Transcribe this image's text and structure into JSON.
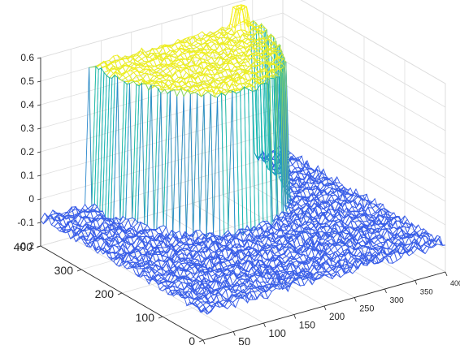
{
  "chart_data": {
    "type": "surface",
    "title": "",
    "xlabel": "",
    "ylabel": "",
    "zlabel": "",
    "x_axis": {
      "ticks": [
        0,
        50,
        100,
        150,
        200,
        250,
        300,
        350,
        400
      ],
      "tick_labels": [
        "0",
        "50",
        "100",
        "150",
        "200",
        "250",
        "300",
        "350",
        "400"
      ],
      "range": [
        0,
        400
      ]
    },
    "y_axis": {
      "ticks": [
        0,
        100,
        200,
        300,
        400
      ],
      "tick_labels": [
        "0",
        "100",
        "200",
        "300",
        "400"
      ],
      "range": [
        0,
        400
      ]
    },
    "z_axis": {
      "ticks": [
        -0.2,
        -0.1,
        0,
        0.1,
        0.2,
        0.3,
        0.4,
        0.5,
        0.6
      ],
      "tick_labels": [
        "-0.2",
        "-0.1",
        "0",
        "0.1",
        "0.2",
        "0.3",
        "0.4",
        "0.5",
        "0.6"
      ],
      "range": [
        -0.2,
        0.6
      ]
    },
    "grid": true,
    "colormap": "parula",
    "colors": {
      "low": "#3b5ee8",
      "mid": "#19b8b0",
      "high": "#f5f020"
    },
    "surface": {
      "base_level": -0.08,
      "base_noise_amplitude": 0.02,
      "main_plateau": {
        "shape": "half-disc",
        "x_range": [
          80,
          350
        ],
        "y_range": [
          200,
          400
        ],
        "height": 0.52
      },
      "small_pillar": {
        "x_range": [
          310,
          330
        ],
        "y_range": [
          375,
          395
        ],
        "height": 0.6
      }
    }
  }
}
